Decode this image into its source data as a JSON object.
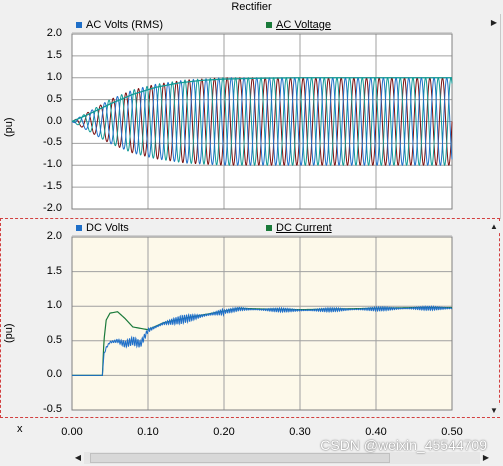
{
  "window": {
    "title": "Rectifier"
  },
  "x_axis_label": "x",
  "watermark": "CSDN @weixin_45544709",
  "colors": {
    "blue": "#1f6fc8",
    "teal": "#129a96",
    "dark_red": "#7a1010",
    "green": "#1a7a3a",
    "grid": "#a0a0a0"
  },
  "chart_data": [
    {
      "type": "line",
      "ylabel": "(pu)",
      "ylim": [
        -2.0,
        2.0
      ],
      "yticks": [
        "2.0",
        "1.5",
        "1.0",
        "0.5",
        "0.0",
        "-0.5",
        "-1.0",
        "-1.5",
        "-2.0"
      ],
      "xlim": [
        0.0,
        0.5
      ],
      "grid": true,
      "legend": [
        {
          "name": "AC Volts (RMS)",
          "color": "#1f6fc8"
        },
        {
          "name": "AC Voltage",
          "color": "#1a7a3a"
        }
      ],
      "series": [
        {
          "name": "AC Volts (RMS)",
          "x": [
            0.0,
            0.02,
            0.05,
            0.08,
            0.11,
            0.14,
            0.17,
            0.2,
            0.25,
            0.3,
            0.4,
            0.5
          ],
          "y": [
            0.0,
            0.15,
            0.4,
            0.62,
            0.78,
            0.88,
            0.94,
            0.97,
            0.99,
            1.0,
            1.0,
            1.0
          ]
        },
        {
          "name": "AC Voltage",
          "frequency_hz": 60,
          "amplitude_x": [
            0.0,
            0.02,
            0.05,
            0.08,
            0.11,
            0.15,
            0.2,
            0.5
          ],
          "amplitude_y": [
            0.0,
            0.2,
            0.5,
            0.72,
            0.85,
            0.95,
            1.0,
            1.0
          ],
          "phases": 3
        }
      ]
    },
    {
      "type": "line",
      "ylabel": "(pu)",
      "ylim": [
        -0.5,
        2.0
      ],
      "yticks": [
        "2.0",
        "1.5",
        "1.0",
        "0.5",
        "0.0",
        "-0.5"
      ],
      "xlim": [
        0.0,
        0.5
      ],
      "xticks": [
        "0.00",
        "0.10",
        "0.20",
        "0.30",
        "0.40",
        "0.50"
      ],
      "grid": true,
      "legend": [
        {
          "name": "DC Volts",
          "color": "#1f6fc8"
        },
        {
          "name": "DC Current",
          "color": "#1a7a3a"
        }
      ],
      "series": [
        {
          "name": "DC Volts",
          "x": [
            0.0,
            0.04,
            0.042,
            0.045,
            0.05,
            0.06,
            0.07,
            0.08,
            0.09,
            0.1,
            0.12,
            0.15,
            0.18,
            0.2,
            0.22,
            0.25,
            0.3,
            0.35,
            0.4,
            0.45,
            0.5
          ],
          "y": [
            0.0,
            0.0,
            0.3,
            0.4,
            0.48,
            0.5,
            0.45,
            0.5,
            0.45,
            0.65,
            0.75,
            0.82,
            0.88,
            0.92,
            0.96,
            0.95,
            0.94,
            0.95,
            0.96,
            0.97,
            0.97
          ]
        },
        {
          "name": "DC Current",
          "x": [
            0.0,
            0.04,
            0.042,
            0.045,
            0.05,
            0.06,
            0.07,
            0.08,
            0.09,
            0.1,
            0.12,
            0.15,
            0.18,
            0.2,
            0.22,
            0.25,
            0.3,
            0.35,
            0.4,
            0.45,
            0.5
          ],
          "y": [
            0.0,
            0.0,
            0.5,
            0.8,
            0.9,
            0.92,
            0.82,
            0.7,
            0.68,
            0.66,
            0.76,
            0.83,
            0.89,
            0.93,
            0.97,
            0.96,
            0.95,
            0.96,
            0.97,
            0.98,
            0.98
          ]
        }
      ]
    }
  ]
}
